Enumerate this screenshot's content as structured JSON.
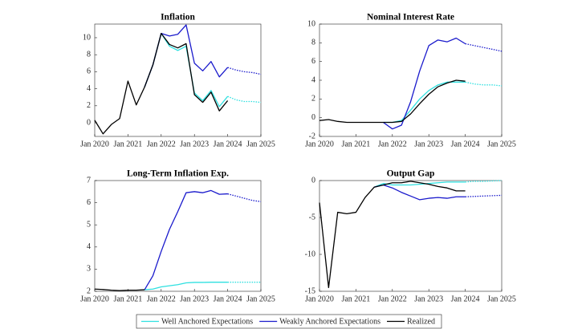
{
  "chart_data": [
    {
      "type": "line",
      "title": "Inflation",
      "x": [
        "2020-01",
        "2020-04",
        "2020-07",
        "2020-10",
        "2021-01",
        "2021-04",
        "2021-07",
        "2021-10",
        "2022-01",
        "2022-04",
        "2022-07",
        "2022-10",
        "2023-01",
        "2023-04",
        "2023-07",
        "2023-10",
        "2024-01",
        "2024-04",
        "2024-07",
        "2024-10",
        "2025-01"
      ],
      "xlim": [
        "2020-01",
        "2025-01"
      ],
      "xticks": [
        {
          "value": "2020-01",
          "label": "Jan 2020"
        },
        {
          "value": "2021-01",
          "label": "Jan 2021"
        },
        {
          "value": "2022-01",
          "label": "Jan 2022"
        },
        {
          "value": "2023-01",
          "label": "Jan 2023"
        },
        {
          "value": "2024-01",
          "label": "Jan 2024"
        },
        {
          "value": "2025-01",
          "label": "Jan 2025"
        }
      ],
      "ylim": [
        -1.6,
        11.6
      ],
      "yticks": [
        0,
        2,
        4,
        6,
        8,
        10
      ],
      "series": [
        {
          "name": "Well Anchored Expectations",
          "color": "#2ee0e0",
          "values": [
            null,
            null,
            null,
            null,
            null,
            null,
            4.2,
            6.8,
            10.5,
            9.0,
            8.5,
            9.0,
            3.5,
            2.6,
            3.8,
            1.9,
            3.1,
            null,
            null,
            null,
            null
          ]
        },
        {
          "name": "Weakly Anchored Expectations",
          "color": "#1a1acc",
          "values": [
            null,
            null,
            null,
            null,
            null,
            null,
            4.2,
            6.8,
            10.5,
            10.2,
            10.4,
            11.5,
            7.0,
            6.1,
            7.2,
            5.4,
            6.5,
            null,
            null,
            null,
            null
          ]
        },
        {
          "name": "Realized",
          "color": "#000000",
          "values": [
            0.3,
            -1.3,
            -0.2,
            0.5,
            4.9,
            2.1,
            4.2,
            6.8,
            10.5,
            9.2,
            8.8,
            9.3,
            3.3,
            2.4,
            3.6,
            1.4,
            2.6,
            null,
            null,
            null,
            null
          ]
        },
        {
          "color": "#2ee0e0",
          "dashed": true,
          "values": [
            null,
            null,
            null,
            null,
            null,
            null,
            null,
            null,
            null,
            null,
            null,
            null,
            null,
            null,
            null,
            null,
            3.1,
            2.7,
            2.5,
            2.5,
            2.4
          ]
        },
        {
          "color": "#1a1acc",
          "dashed": true,
          "values": [
            null,
            null,
            null,
            null,
            null,
            null,
            null,
            null,
            null,
            null,
            null,
            null,
            null,
            null,
            null,
            null,
            6.5,
            6.2,
            6.0,
            5.9,
            5.7
          ]
        }
      ]
    },
    {
      "type": "line",
      "title": "Nominal Interest Rate",
      "x": [
        "2020-01",
        "2020-04",
        "2020-07",
        "2020-10",
        "2021-01",
        "2021-04",
        "2021-07",
        "2021-10",
        "2022-01",
        "2022-04",
        "2022-07",
        "2022-10",
        "2023-01",
        "2023-04",
        "2023-07",
        "2023-10",
        "2024-01",
        "2024-04",
        "2024-07",
        "2024-10",
        "2025-01"
      ],
      "xlim": [
        "2020-01",
        "2025-01"
      ],
      "xticks": [
        {
          "value": "2020-01",
          "label": "Jan 2020"
        },
        {
          "value": "2021-01",
          "label": "Jan 2021"
        },
        {
          "value": "2022-01",
          "label": "Jan 2022"
        },
        {
          "value": "2023-01",
          "label": "Jan 2023"
        },
        {
          "value": "2024-01",
          "label": "Jan 2024"
        },
        {
          "value": "2025-01",
          "label": "Jan 2025"
        }
      ],
      "ylim": [
        -2,
        10
      ],
      "yticks": [
        -2,
        0,
        2,
        4,
        6,
        8,
        10
      ],
      "series": [
        {
          "name": "Well Anchored Expectations",
          "color": "#2ee0e0",
          "values": [
            null,
            null,
            null,
            null,
            null,
            null,
            null,
            -0.5,
            -0.5,
            -0.3,
            0.8,
            2.0,
            2.9,
            3.5,
            3.8,
            3.8,
            3.8,
            null,
            null,
            null,
            null
          ]
        },
        {
          "name": "Weakly Anchored Expectations",
          "color": "#1a1acc",
          "values": [
            null,
            null,
            null,
            null,
            null,
            null,
            null,
            -0.5,
            -1.2,
            -0.8,
            1.7,
            5.0,
            7.7,
            8.3,
            8.1,
            8.5,
            7.9,
            null,
            null,
            null,
            null
          ]
        },
        {
          "name": "Realized",
          "color": "#000000",
          "values": [
            -0.3,
            -0.2,
            -0.4,
            -0.5,
            -0.5,
            -0.5,
            -0.5,
            -0.5,
            -0.5,
            -0.4,
            0.4,
            1.5,
            2.5,
            3.3,
            3.7,
            4.0,
            3.9,
            null,
            null,
            null,
            null
          ]
        },
        {
          "color": "#2ee0e0",
          "dashed": true,
          "values": [
            null,
            null,
            null,
            null,
            null,
            null,
            null,
            null,
            null,
            null,
            null,
            null,
            null,
            null,
            null,
            null,
            3.8,
            3.6,
            3.5,
            3.5,
            3.4
          ]
        },
        {
          "color": "#1a1acc",
          "dashed": true,
          "values": [
            null,
            null,
            null,
            null,
            null,
            null,
            null,
            null,
            null,
            null,
            null,
            null,
            null,
            null,
            null,
            null,
            7.9,
            7.7,
            7.5,
            7.3,
            7.1
          ]
        }
      ]
    },
    {
      "type": "line",
      "title": "Long-Term Inflation Exp.",
      "x": [
        "2020-01",
        "2020-04",
        "2020-07",
        "2020-10",
        "2021-01",
        "2021-04",
        "2021-07",
        "2021-10",
        "2022-01",
        "2022-04",
        "2022-07",
        "2022-10",
        "2023-01",
        "2023-04",
        "2023-07",
        "2023-10",
        "2024-01",
        "2024-04",
        "2024-07",
        "2024-10",
        "2025-01"
      ],
      "xlim": [
        "2020-01",
        "2025-01"
      ],
      "xticks": [
        {
          "value": "2020-01",
          "label": "Jan 2020"
        },
        {
          "value": "2021-01",
          "label": "Jan 2021"
        },
        {
          "value": "2022-01",
          "label": "Jan 2022"
        },
        {
          "value": "2023-01",
          "label": "Jan 2023"
        },
        {
          "value": "2024-01",
          "label": "Jan 2024"
        },
        {
          "value": "2025-01",
          "label": "Jan 2025"
        }
      ],
      "ylim": [
        2,
        7
      ],
      "yticks": [
        2,
        3,
        4,
        5,
        6,
        7
      ],
      "series": [
        {
          "name": "Well Anchored Expectations",
          "color": "#2ee0e0",
          "values": [
            null,
            null,
            null,
            null,
            null,
            null,
            2.07,
            2.1,
            2.2,
            2.25,
            2.3,
            2.38,
            2.4,
            2.4,
            2.41,
            2.41,
            2.41,
            null,
            null,
            null,
            null
          ]
        },
        {
          "name": "Weakly Anchored Expectations",
          "color": "#1a1acc",
          "values": [
            null,
            null,
            null,
            null,
            null,
            null,
            2.07,
            2.7,
            3.8,
            4.8,
            5.6,
            6.45,
            6.5,
            6.45,
            6.55,
            6.38,
            6.4,
            null,
            null,
            null,
            null
          ]
        },
        {
          "name": "Realized",
          "color": "#000000",
          "values": [
            2.1,
            2.08,
            2.05,
            2.03,
            2.05,
            2.05,
            2.07,
            null,
            null,
            null,
            null,
            null,
            null,
            null,
            null,
            null,
            null,
            null,
            null,
            null,
            null
          ]
        },
        {
          "color": "#2ee0e0",
          "dashed": true,
          "values": [
            null,
            null,
            null,
            null,
            null,
            null,
            null,
            null,
            null,
            null,
            null,
            null,
            null,
            null,
            null,
            null,
            2.41,
            2.41,
            2.41,
            2.41,
            2.41
          ]
        },
        {
          "color": "#1a1acc",
          "dashed": true,
          "values": [
            null,
            null,
            null,
            null,
            null,
            null,
            null,
            null,
            null,
            null,
            null,
            null,
            null,
            null,
            null,
            null,
            6.4,
            6.3,
            6.2,
            6.1,
            6.05
          ]
        }
      ]
    },
    {
      "type": "line",
      "title": "Output Gap",
      "x": [
        "2020-01",
        "2020-04",
        "2020-07",
        "2020-10",
        "2021-01",
        "2021-04",
        "2021-07",
        "2021-10",
        "2022-01",
        "2022-04",
        "2022-07",
        "2022-10",
        "2023-01",
        "2023-04",
        "2023-07",
        "2023-10",
        "2024-01",
        "2024-04",
        "2024-07",
        "2024-10",
        "2025-01"
      ],
      "xlim": [
        "2020-01",
        "2025-01"
      ],
      "xticks": [
        {
          "value": "2020-01",
          "label": "Jan 2020"
        },
        {
          "value": "2021-01",
          "label": "Jan 2021"
        },
        {
          "value": "2022-01",
          "label": "Jan 2022"
        },
        {
          "value": "2023-01",
          "label": "Jan 2023"
        },
        {
          "value": "2024-01",
          "label": "Jan 2024"
        },
        {
          "value": "2025-01",
          "label": "Jan 2025"
        }
      ],
      "ylim": [
        -15,
        0
      ],
      "yticks": [
        -15,
        -10,
        -5,
        0
      ],
      "series": [
        {
          "name": "Well Anchored Expectations",
          "color": "#2ee0e0",
          "values": [
            null,
            null,
            null,
            null,
            null,
            null,
            -0.9,
            -0.4,
            -0.6,
            -0.6,
            -0.6,
            -0.5,
            -0.4,
            -0.3,
            -0.2,
            -0.2,
            -0.2,
            null,
            null,
            null,
            null
          ]
        },
        {
          "name": "Weakly Anchored Expectations",
          "color": "#1a1acc",
          "values": [
            null,
            null,
            null,
            null,
            null,
            null,
            -0.9,
            -0.6,
            -1.0,
            -1.6,
            -2.1,
            -2.6,
            -2.4,
            -2.3,
            -2.4,
            -2.2,
            -2.2,
            null,
            null,
            null,
            null
          ]
        },
        {
          "name": "Realized",
          "color": "#000000",
          "values": [
            -3.0,
            -14.5,
            -4.3,
            -4.5,
            -4.3,
            -2.3,
            -0.9,
            -0.6,
            -0.3,
            -0.3,
            -0.1,
            -0.3,
            -0.5,
            -0.8,
            -1.0,
            -1.4,
            -1.4,
            null,
            null,
            null,
            null
          ]
        },
        {
          "color": "#2ee0e0",
          "dashed": true,
          "values": [
            null,
            null,
            null,
            null,
            null,
            null,
            null,
            null,
            null,
            null,
            null,
            null,
            null,
            null,
            null,
            null,
            -0.2,
            -0.1,
            -0.1,
            -0.05,
            0.0
          ]
        },
        {
          "color": "#1a1acc",
          "dashed": true,
          "values": [
            null,
            null,
            null,
            null,
            null,
            null,
            null,
            null,
            null,
            null,
            null,
            null,
            null,
            null,
            null,
            null,
            -2.2,
            -2.15,
            -2.1,
            -2.05,
            -2.0
          ]
        }
      ]
    }
  ]
}
